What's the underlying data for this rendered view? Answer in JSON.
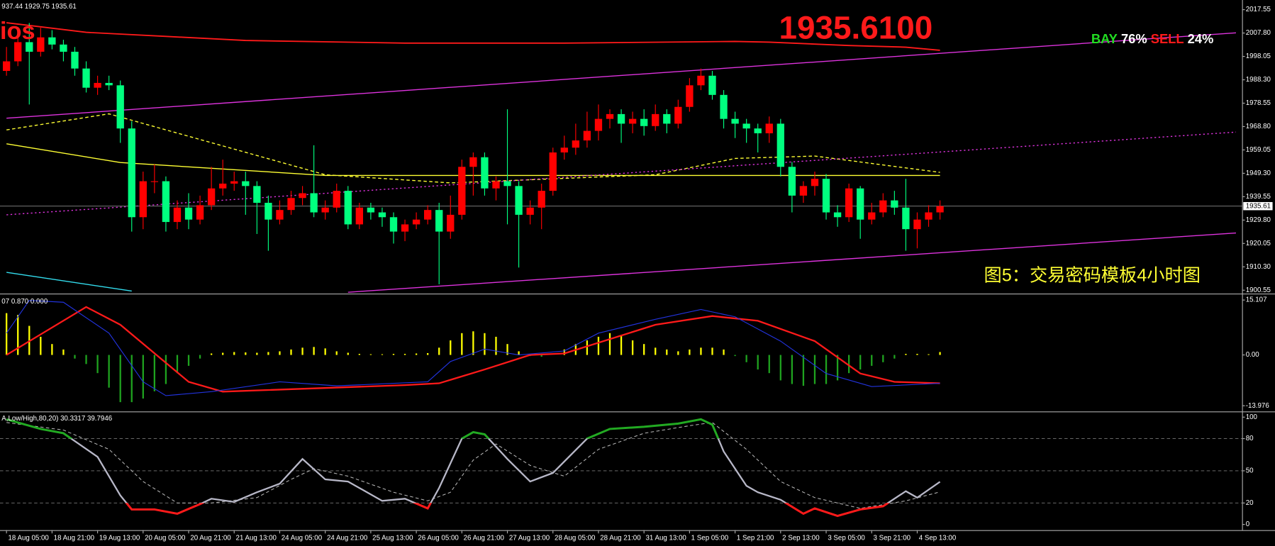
{
  "chart_data": [
    {
      "type": "candlestick",
      "title": "937.44 1929.75 1935.61",
      "corner_text": "ios",
      "price_banner": "1935.6100",
      "signal": {
        "buy_label": "BAY",
        "buy_value": "76%",
        "sell_label": "SELL",
        "sell_value": "24%"
      },
      "caption": "图5：交易密码模板4小时图",
      "categories": [
        "18 Aug 05:00",
        null,
        null,
        null,
        "18 Aug 21:00",
        null,
        null,
        null,
        "19 Aug 13:00",
        null,
        null,
        null,
        "20 Aug 05:00",
        null,
        null,
        null,
        "20 Aug 21:00",
        null,
        null,
        null,
        "21 Aug 13:00",
        null,
        null,
        null,
        "24 Aug 05:00",
        null,
        null,
        null,
        "24 Aug 21:00",
        null,
        null,
        null,
        "25 Aug 13:00",
        null,
        null,
        null,
        "26 Aug 05:00",
        null,
        null,
        null,
        "26 Aug 21:00",
        null,
        null,
        null,
        "27 Aug 13:00",
        null,
        null,
        null,
        "28 Aug 05:00",
        null,
        null,
        null,
        "28 Aug 21:00",
        null,
        null,
        null,
        "31 Aug 13:00",
        null,
        null,
        null,
        "1 Sep 05:00",
        null,
        null,
        null,
        "1 Sep 21:00",
        null,
        null,
        null,
        "2 Sep 13:00",
        null,
        null,
        null,
        "3 Sep 05:00",
        null,
        null,
        null,
        "3 Sep 21:00",
        null,
        null,
        null,
        "4 Sep 13:00",
        null,
        null
      ],
      "ohlc": [
        [
          1992,
          2002,
          1990,
          1996
        ],
        [
          1996,
          2008,
          1994,
          2004
        ],
        [
          2004,
          2012,
          1978,
          2000
        ],
        [
          2000,
          2010,
          1998,
          2006
        ],
        [
          2006,
          2009,
          2001,
          2003
        ],
        [
          2003,
          2005,
          1996,
          2000
        ],
        [
          2000,
          2002,
          1990,
          1993
        ],
        [
          1993,
          1996,
          1983,
          1985
        ],
        [
          1985,
          1990,
          1982,
          1987
        ],
        [
          1987,
          1990,
          1984,
          1986
        ],
        [
          1986,
          1988,
          1962,
          1968
        ],
        [
          1968,
          1971,
          1925,
          1931
        ],
        [
          1931,
          1950,
          1926,
          1946
        ],
        [
          1946,
          1953,
          1941,
          1946
        ],
        [
          1946,
          1948,
          1925,
          1929
        ],
        [
          1929,
          1938,
          1926,
          1935
        ],
        [
          1935,
          1941,
          1926,
          1930
        ],
        [
          1930,
          1940,
          1928,
          1936
        ],
        [
          1936,
          1952,
          1934,
          1943
        ],
        [
          1943,
          1955,
          1940,
          1945
        ],
        [
          1945,
          1950,
          1942,
          1946
        ],
        [
          1946,
          1950,
          1932,
          1944
        ],
        [
          1944,
          1946,
          1924,
          1937
        ],
        [
          1937,
          1940,
          1917,
          1930
        ],
        [
          1930,
          1938,
          1928,
          1934
        ],
        [
          1934,
          1942,
          1932,
          1939
        ],
        [
          1939,
          1944,
          1936,
          1941
        ],
        [
          1941,
          1961,
          1931,
          1933
        ],
        [
          1933,
          1938,
          1930,
          1935
        ],
        [
          1935,
          1945,
          1933,
          1942
        ],
        [
          1942,
          1944,
          1926,
          1928
        ],
        [
          1928,
          1937,
          1926,
          1935
        ],
        [
          1935,
          1937,
          1930,
          1933
        ],
        [
          1933,
          1935,
          1927,
          1931
        ],
        [
          1931,
          1933,
          1920,
          1925
        ],
        [
          1925,
          1930,
          1921,
          1928
        ],
        [
          1928,
          1933,
          1926,
          1930
        ],
        [
          1930,
          1936,
          1928,
          1934
        ],
        [
          1934,
          1937,
          1903,
          1925
        ],
        [
          1925,
          1940,
          1922,
          1932
        ],
        [
          1932,
          1955,
          1930,
          1952
        ],
        [
          1952,
          1958,
          1940,
          1956
        ],
        [
          1956,
          1958,
          1940,
          1943
        ],
        [
          1943,
          1948,
          1938,
          1946
        ],
        [
          1946,
          1976,
          1928,
          1944
        ],
        [
          1944,
          1946,
          1910,
          1932
        ],
        [
          1932,
          1938,
          1928,
          1935
        ],
        [
          1935,
          1945,
          1926,
          1942
        ],
        [
          1942,
          1960,
          1940,
          1958
        ],
        [
          1958,
          1965,
          1955,
          1960
        ],
        [
          1960,
          1970,
          1957,
          1963
        ],
        [
          1963,
          1975,
          1960,
          1967
        ],
        [
          1967,
          1978,
          1963,
          1972
        ],
        [
          1972,
          1976,
          1968,
          1974
        ],
        [
          1974,
          1976,
          1962,
          1970
        ],
        [
          1970,
          1975,
          1966,
          1972
        ],
        [
          1972,
          1976,
          1965,
          1969
        ],
        [
          1969,
          1978,
          1967,
          1974
        ],
        [
          1974,
          1976,
          1966,
          1970
        ],
        [
          1970,
          1980,
          1968,
          1977
        ],
        [
          1977,
          1989,
          1975,
          1986
        ],
        [
          1986,
          1993,
          1984,
          1990
        ],
        [
          1990,
          1992,
          1980,
          1982
        ],
        [
          1982,
          1984,
          1968,
          1972
        ],
        [
          1972,
          1975,
          1964,
          1970
        ],
        [
          1970,
          1972,
          1962,
          1968
        ],
        [
          1968,
          1970,
          1958,
          1966
        ],
        [
          1966,
          1973,
          1962,
          1970
        ],
        [
          1970,
          1972,
          1948,
          1952
        ],
        [
          1952,
          1954,
          1933,
          1940
        ],
        [
          1940,
          1946,
          1937,
          1944
        ],
        [
          1944,
          1950,
          1940,
          1947
        ],
        [
          1947,
          1949,
          1930,
          1933
        ],
        [
          1933,
          1936,
          1927,
          1931
        ],
        [
          1931,
          1945,
          1929,
          1943
        ],
        [
          1943,
          1944,
          1922,
          1930
        ],
        [
          1930,
          1937,
          1928,
          1933
        ],
        [
          1933,
          1941,
          1931,
          1938
        ],
        [
          1938,
          1942,
          1932,
          1935
        ],
        [
          1935,
          1947,
          1917,
          1926
        ],
        [
          1926,
          1933,
          1918,
          1930
        ],
        [
          1930,
          1936,
          1927,
          1933
        ],
        [
          1933,
          1938,
          1930,
          1935.61
        ]
      ],
      "up_color": "#ff0000",
      "down_color": "#00ff7f",
      "lines": [
        {
          "color": "#ff1a1a",
          "style": "solid",
          "x": [
            0,
            3,
            7,
            14,
            21,
            35,
            49,
            64,
            67,
            74,
            79,
            82
          ],
          "values": [
            2012.1,
            2010.4,
            2008.1,
            2006.4,
            2004.7,
            2003.6,
            2003.6,
            2004.3,
            2004,
            2002.6,
            2001.9,
            2000.6
          ]
        },
        {
          "color": "#ffff33",
          "style": "solid",
          "x": [
            0,
            10,
            28,
            82
          ],
          "values": [
            1961.6,
            1953.8,
            1948.4,
            1948.4
          ]
        },
        {
          "color": "#ffff33",
          "style": "dashed",
          "x": [
            0,
            9,
            28,
            39,
            57,
            64,
            71,
            82
          ],
          "values": [
            1967.4,
            1974.1,
            1948.7,
            1945.3,
            1948.7,
            1955.5,
            1956.5,
            1949.7
          ]
        },
        {
          "color": "#33ddee",
          "style": "solid",
          "x": [
            0,
            11
          ],
          "values": [
            1908,
            1900.2
          ]
        },
        {
          "color": "#dd33dd",
          "style": "solid",
          "x": [
            0,
            108
          ],
          "values": [
            1972.3,
            2007.9
          ]
        },
        {
          "color": "#dd33dd",
          "style": "dotted",
          "x": [
            0,
            108
          ],
          "values": [
            1932,
            1966.5
          ]
        },
        {
          "color": "#dd33dd",
          "style": "solid",
          "x": [
            30,
            108
          ],
          "values": [
            1899.7,
            1924.4
          ]
        }
      ],
      "current_price": 1935.61,
      "xlim": [
        -0.571,
        108.571
      ],
      "ylim": [
        1899.5,
        2020.9
      ],
      "yticks": [
        2017.55,
        {
          "value": 2007.8,
          "label": "2007.80"
        },
        1998.05,
        {
          "value": 1988.3,
          "label": "1988.30"
        },
        1978.55,
        {
          "value": 1968.8,
          "label": "1968.80"
        },
        1959.05,
        {
          "value": 1949.3,
          "label": "1949.30"
        },
        1939.55,
        {
          "value": 1929.8,
          "label": "1929.80"
        },
        1920.05,
        {
          "value": 1910.3,
          "label": "1910.30"
        },
        1900.55
      ]
    },
    {
      "type": "macd",
      "title": "07 0.870 0.000",
      "values": [
        11.5,
        11,
        8,
        5,
        3,
        1.5,
        -1,
        -2.5,
        -5,
        -9,
        -13,
        -13,
        -12,
        -10,
        -8,
        -5,
        -3,
        -1,
        0.4,
        0.6,
        0.8,
        0.7,
        0.6,
        0.8,
        1,
        1.5,
        2,
        2.2,
        1.8,
        1,
        0.6,
        0.3,
        0.2,
        0.2,
        0.3,
        0.3,
        0.4,
        0.5,
        2,
        4,
        6,
        6.5,
        6,
        5,
        3,
        1,
        -0.3,
        -0.5,
        0,
        1.5,
        3,
        4,
        5,
        6,
        5.5,
        4,
        3,
        2,
        1.5,
        1,
        1.5,
        2,
        2,
        1.5,
        -0.3,
        -2,
        -4,
        -5,
        -7,
        -8,
        -8.5,
        -8,
        -8,
        -7,
        -5,
        -4,
        -3,
        -2,
        -1,
        0.3,
        0.3,
        0.2,
        0.8
      ],
      "pos_color": "#ffff00",
      "neg_color": "#1fa31f",
      "lines": [
        {
          "color": "#ff1a1a",
          "style": "solid",
          "x": [
            0,
            7,
            10,
            16,
            19,
            35,
            38,
            42,
            46,
            49,
            57,
            62,
            66,
            71,
            75,
            78,
            82
          ],
          "values": [
            0,
            13.2,
            8.3,
            -7.4,
            -10.1,
            -8.3,
            -7.8,
            -4,
            0,
            0.4,
            8.3,
            10.7,
            9.4,
            3.8,
            -5.1,
            -7.4,
            -7.8
          ]
        },
        {
          "color": "#2233dd",
          "style": "thin",
          "x": [
            0,
            2,
            5,
            9,
            12,
            14,
            18,
            24,
            29,
            37,
            39,
            42,
            45,
            49,
            52,
            57,
            61,
            64,
            68,
            72,
            76,
            82
          ],
          "values": [
            6,
            15,
            14.5,
            6,
            -7.4,
            -11.2,
            -10.1,
            -7.4,
            -8.5,
            -7.4,
            -1.8,
            1.6,
            0,
            1.1,
            6,
            9.8,
            12.5,
            10.5,
            3.8,
            -5.1,
            -8.7,
            -7.8
          ]
        }
      ],
      "xlim": [
        -0.571,
        108.571
      ],
      "ylim": [
        -15.32,
        16.45
      ],
      "yticks": [
        15.107,
        {
          "value": 0,
          "label": "0.00"
        },
        -13.976
      ]
    },
    {
      "type": "stochastic",
      "title": "A,Low/High,80,20) 30.3317 39.7946",
      "high_color": "#22aa22",
      "low_color": "#ff1a1a",
      "lines": [
        {
          "color": "#b8b8c8",
          "style": "solid",
          "x": [
            0,
            3,
            5,
            8,
            10,
            11,
            13,
            15,
            17,
            18,
            20,
            22,
            24,
            26,
            28,
            30,
            33,
            35,
            37,
            38,
            40,
            41,
            42,
            44,
            46,
            48,
            51,
            53,
            56,
            59,
            61,
            62,
            63,
            65,
            66,
            68,
            70,
            71,
            73,
            75,
            77,
            79,
            80,
            82
          ],
          "values": [
            98,
            89,
            85,
            63,
            27,
            14,
            14,
            10,
            19,
            24,
            21,
            30,
            38,
            61,
            42,
            40,
            22,
            24,
            15,
            34,
            80,
            86,
            84,
            61,
            40,
            48,
            80,
            89,
            91,
            94,
            98,
            93,
            68,
            36,
            30,
            23,
            10,
            15,
            8,
            14,
            17,
            31,
            25,
            39.7946
          ]
        },
        {
          "color": "#b8b8b8",
          "style": "dashed",
          "x": [
            0,
            5,
            9,
            12,
            15,
            18,
            22,
            25,
            27,
            30,
            34,
            37,
            39,
            41,
            43,
            46,
            49,
            52,
            56,
            60,
            62,
            65,
            68,
            71,
            75,
            79,
            82
          ],
          "values": [
            95,
            88,
            70,
            40,
            20,
            20,
            25,
            42,
            52,
            45,
            30,
            22,
            30,
            60,
            75,
            55,
            45,
            70,
            85,
            92,
            95,
            70,
            40,
            25,
            15,
            22,
            30.3317
          ]
        }
      ],
      "levels": [
        80,
        50,
        20
      ],
      "xlim": [
        -0.571,
        108.571
      ],
      "ylim": [
        -5.3,
        103.8
      ],
      "yticks": [
        100,
        80,
        50,
        20,
        0
      ]
    }
  ]
}
